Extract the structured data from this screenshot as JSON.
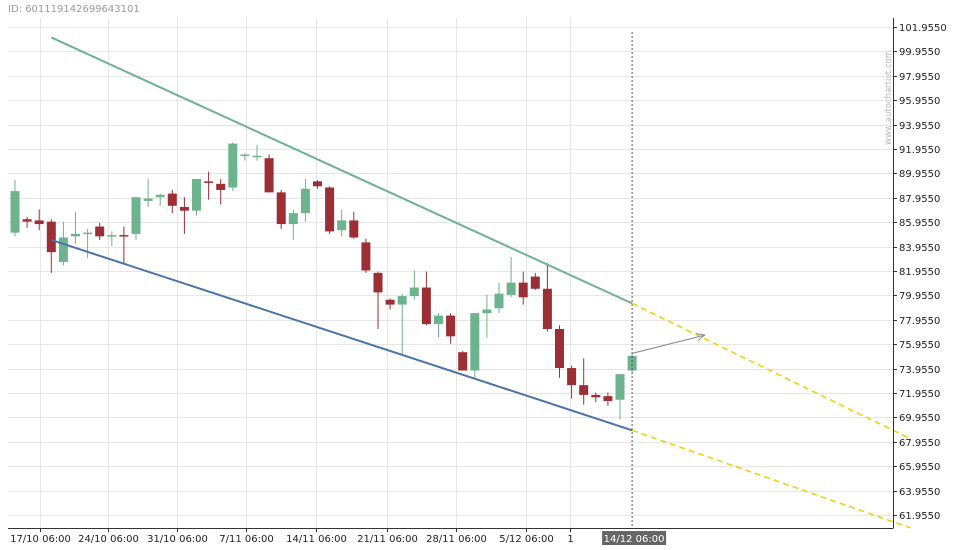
{
  "header": {
    "id_text": "ID: 601119142699643101"
  },
  "watermark": "www.autochartist.com",
  "colors": {
    "up": "#6db38d",
    "down": "#9b2f35",
    "resistance": "#6db38d",
    "support": "#4a73a8",
    "projection": "#f2d012",
    "grid": "#e6e6e6",
    "forecast_arrow": "#888888",
    "cursor_label_bg": "#666666"
  },
  "chart_data": {
    "type": "candlestick",
    "title": "",
    "xlabel": "",
    "ylabel": "",
    "ylim": [
      60.95,
      102.45
    ],
    "y_ticks": [
      "101.9550",
      "99.9550",
      "97.9550",
      "95.9550",
      "93.9550",
      "91.9550",
      "89.9550",
      "87.9550",
      "85.9550",
      "83.9550",
      "81.9550",
      "79.9550",
      "77.9550",
      "75.9550",
      "73.9550",
      "71.9550",
      "69.9550",
      "67.9550",
      "65.9550",
      "63.9550",
      "61.9550"
    ],
    "x_tick_labels": [
      "17/10 06:00",
      "24/10 06:00",
      "31/10 06:00",
      "7/11 06:00",
      "14/11 06:00",
      "21/11 06:00",
      "28/11 06:00",
      "5/12 06:00",
      "1"
    ],
    "cursor_label": "14/12 06:00",
    "grid": true,
    "candles": [
      {
        "o": 85.1,
        "h": 89.4,
        "l": 84.8,
        "c": 88.5
      },
      {
        "o": 86.2,
        "h": 86.4,
        "l": 85.5,
        "c": 86.0
      },
      {
        "o": 86.1,
        "h": 87.0,
        "l": 85.3,
        "c": 85.8
      },
      {
        "o": 86.0,
        "h": 86.2,
        "l": 81.8,
        "c": 83.5
      },
      {
        "o": 82.7,
        "h": 86.0,
        "l": 82.4,
        "c": 84.7
      },
      {
        "o": 84.8,
        "h": 86.8,
        "l": 84.2,
        "c": 85.0
      },
      {
        "o": 85.0,
        "h": 85.4,
        "l": 83.0,
        "c": 85.1
      },
      {
        "o": 85.6,
        "h": 85.9,
        "l": 84.5,
        "c": 84.8
      },
      {
        "o": 84.8,
        "h": 85.2,
        "l": 84.0,
        "c": 84.9
      },
      {
        "o": 84.9,
        "h": 85.6,
        "l": 82.5,
        "c": 84.8
      },
      {
        "o": 85.0,
        "h": 88.0,
        "l": 84.5,
        "c": 88.0
      },
      {
        "o": 87.7,
        "h": 89.5,
        "l": 87.2,
        "c": 87.9
      },
      {
        "o": 88.0,
        "h": 88.3,
        "l": 87.3,
        "c": 88.2
      },
      {
        "o": 88.3,
        "h": 88.6,
        "l": 86.7,
        "c": 87.3
      },
      {
        "o": 87.2,
        "h": 88.0,
        "l": 85.0,
        "c": 86.9
      },
      {
        "o": 86.9,
        "h": 89.5,
        "l": 86.5,
        "c": 89.5
      },
      {
        "o": 89.3,
        "h": 90.1,
        "l": 87.8,
        "c": 89.2
      },
      {
        "o": 89.1,
        "h": 89.5,
        "l": 87.4,
        "c": 88.6
      },
      {
        "o": 88.8,
        "h": 92.5,
        "l": 88.5,
        "c": 92.4
      },
      {
        "o": 91.4,
        "h": 91.6,
        "l": 91.0,
        "c": 91.5
      },
      {
        "o": 91.3,
        "h": 92.3,
        "l": 91.0,
        "c": 91.4
      },
      {
        "o": 91.2,
        "h": 91.5,
        "l": 88.4,
        "c": 88.4
      },
      {
        "o": 88.4,
        "h": 88.6,
        "l": 85.4,
        "c": 85.8
      },
      {
        "o": 85.8,
        "h": 87.0,
        "l": 84.5,
        "c": 86.7
      },
      {
        "o": 86.7,
        "h": 89.5,
        "l": 86.0,
        "c": 88.7
      },
      {
        "o": 89.3,
        "h": 89.4,
        "l": 88.7,
        "c": 88.9
      },
      {
        "o": 88.8,
        "h": 88.9,
        "l": 85.0,
        "c": 85.2
      },
      {
        "o": 85.3,
        "h": 87.0,
        "l": 84.8,
        "c": 86.1
      },
      {
        "o": 86.1,
        "h": 86.8,
        "l": 84.6,
        "c": 84.7
      },
      {
        "o": 84.3,
        "h": 84.6,
        "l": 81.8,
        "c": 82.0
      },
      {
        "o": 81.8,
        "h": 81.9,
        "l": 77.2,
        "c": 80.2
      },
      {
        "o": 79.6,
        "h": 79.7,
        "l": 78.8,
        "c": 79.2
      },
      {
        "o": 79.2,
        "h": 80.1,
        "l": 75.0,
        "c": 79.9
      },
      {
        "o": 79.9,
        "h": 82.0,
        "l": 79.6,
        "c": 80.6
      },
      {
        "o": 80.6,
        "h": 81.9,
        "l": 77.5,
        "c": 77.6
      },
      {
        "o": 77.6,
        "h": 78.5,
        "l": 76.5,
        "c": 78.3
      },
      {
        "o": 78.3,
        "h": 78.5,
        "l": 76.0,
        "c": 76.6
      },
      {
        "o": 75.3,
        "h": 75.4,
        "l": 73.8,
        "c": 73.8
      },
      {
        "o": 73.8,
        "h": 78.5,
        "l": 73.2,
        "c": 78.5
      },
      {
        "o": 78.5,
        "h": 80.0,
        "l": 76.5,
        "c": 78.8
      },
      {
        "o": 78.9,
        "h": 81.0,
        "l": 78.5,
        "c": 80.1
      },
      {
        "o": 80.0,
        "h": 83.1,
        "l": 79.8,
        "c": 81.0
      },
      {
        "o": 81.0,
        "h": 81.9,
        "l": 79.2,
        "c": 79.8
      },
      {
        "o": 81.5,
        "h": 81.8,
        "l": 80.4,
        "c": 80.5
      },
      {
        "o": 80.5,
        "h": 82.6,
        "l": 77.0,
        "c": 77.2
      },
      {
        "o": 77.2,
        "h": 77.5,
        "l": 73.2,
        "c": 74.0
      },
      {
        "o": 74.0,
        "h": 74.2,
        "l": 71.5,
        "c": 72.6
      },
      {
        "o": 72.6,
        "h": 74.8,
        "l": 71.0,
        "c": 71.8
      },
      {
        "o": 71.8,
        "h": 72.0,
        "l": 71.2,
        "c": 71.6
      },
      {
        "o": 71.7,
        "h": 72.0,
        "l": 70.9,
        "c": 71.3
      },
      {
        "o": 71.4,
        "h": 73.5,
        "l": 69.8,
        "c": 73.5
      },
      {
        "o": 73.8,
        "h": 75.2,
        "l": 73.6,
        "c": 75.0
      }
    ],
    "trendlines": [
      {
        "name": "resistance",
        "from": {
          "i": 3,
          "y": 101.1
        },
        "to": {
          "i": 51,
          "y": 79.3
        },
        "projection_to": {
          "i": 74,
          "y": 68.2
        }
      },
      {
        "name": "support",
        "from": {
          "i": 3,
          "y": 84.5
        },
        "to": {
          "i": 51,
          "y": 68.9
        },
        "projection_to": {
          "i": 74,
          "y": 60.9
        }
      }
    ],
    "forecast_arrow": {
      "from": {
        "i": 51,
        "y": 75.2
      },
      "to": {
        "i": 57,
        "y": 76.7
      }
    },
    "cursor_index": 51
  }
}
